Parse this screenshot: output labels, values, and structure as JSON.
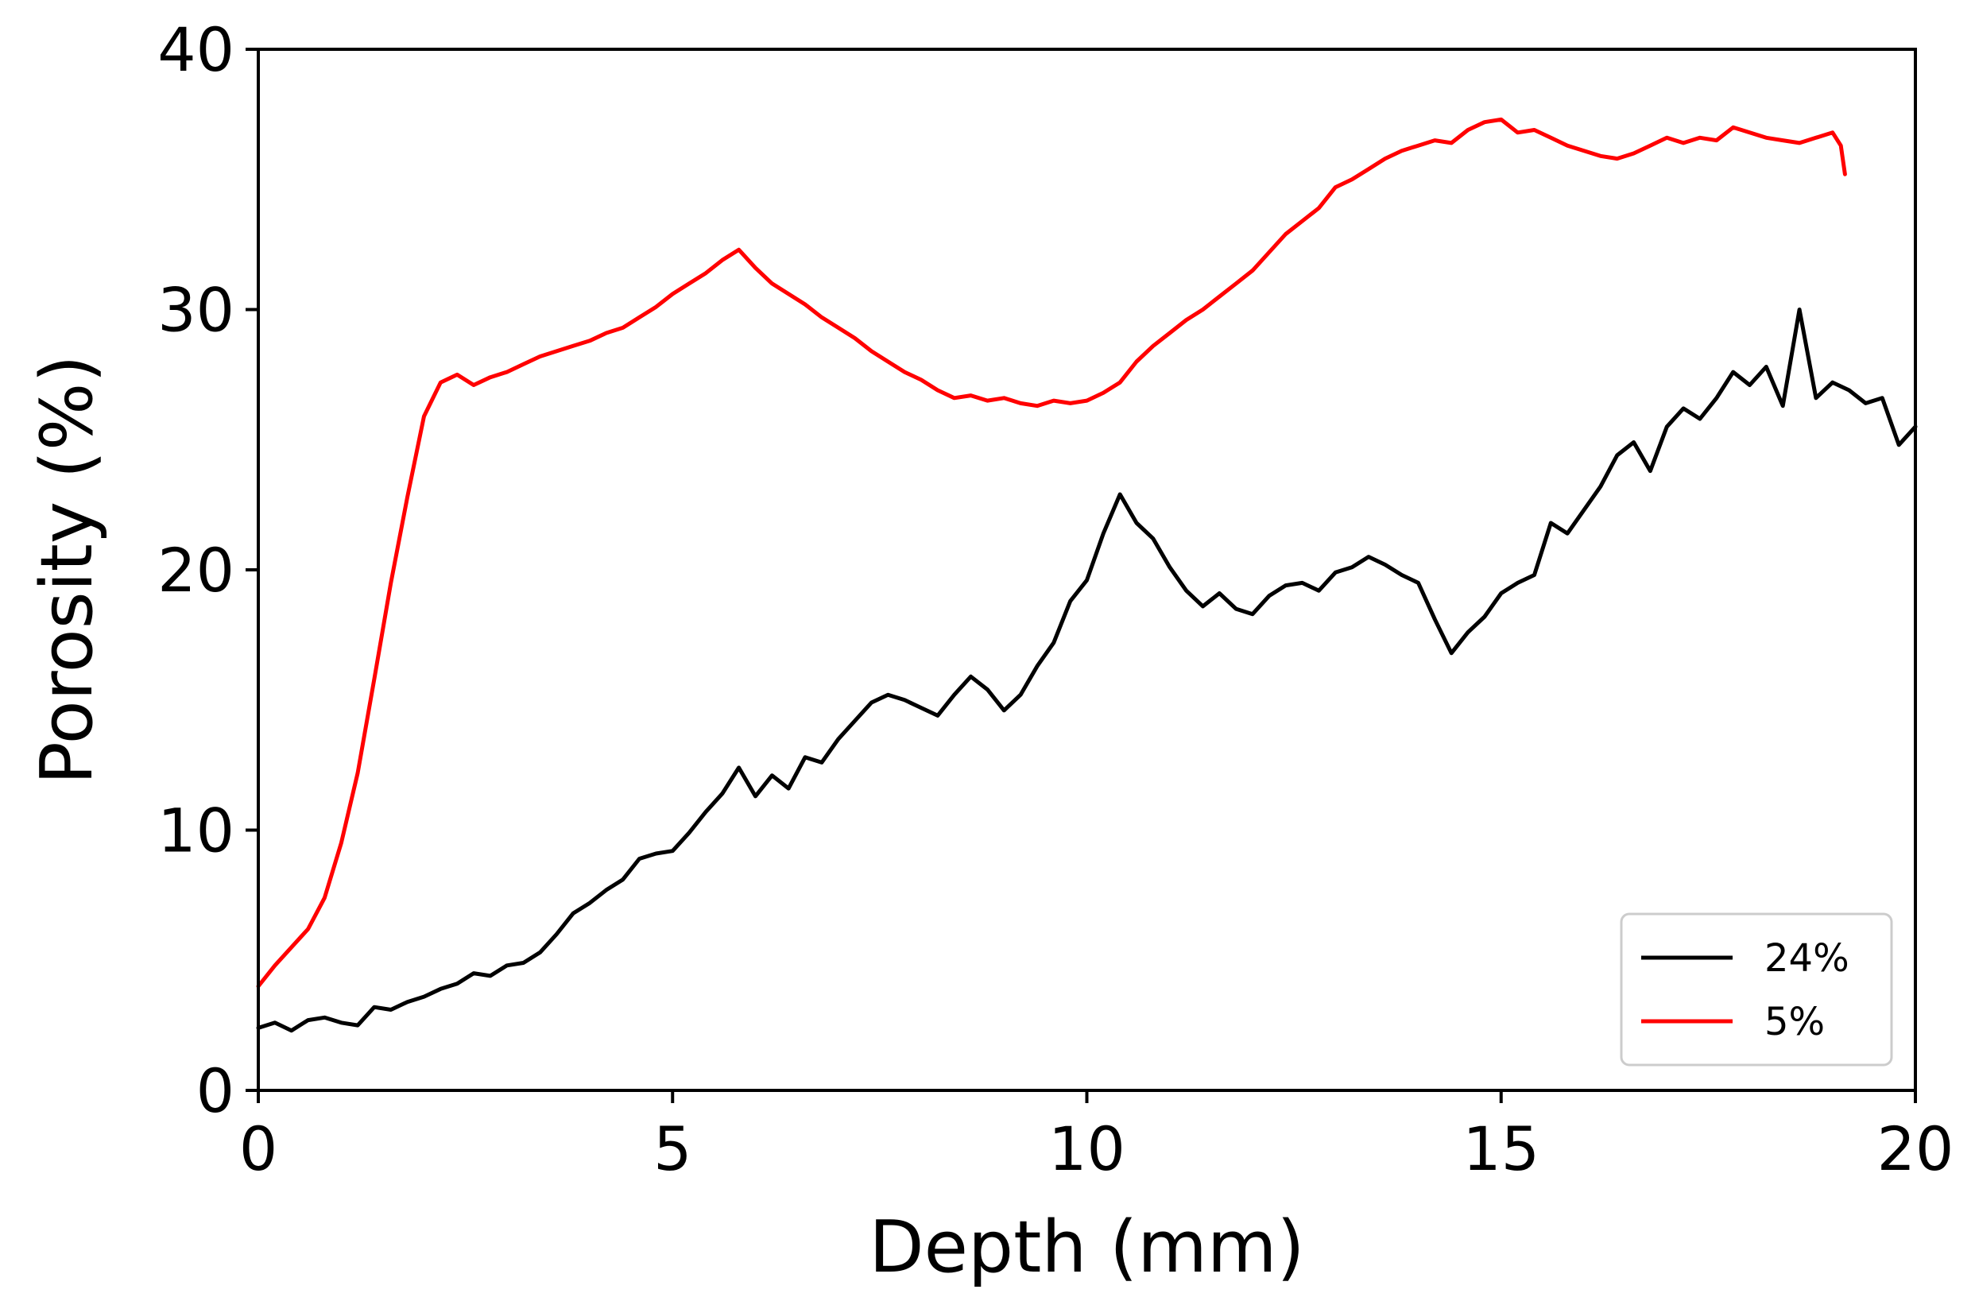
{
  "chart_data": {
    "type": "line",
    "title": "",
    "xlabel": "Depth (mm)",
    "ylabel": "Porosity (%)",
    "xlim": [
      0,
      20
    ],
    "ylim": [
      0,
      40
    ],
    "xticks": [
      0,
      5,
      10,
      15,
      20
    ],
    "yticks": [
      0,
      10,
      20,
      30,
      40
    ],
    "grid": false,
    "legend_position": "bottom-right",
    "series": [
      {
        "name": "24%",
        "color": "#000000",
        "x": [
          0,
          0.2,
          0.4,
          0.6,
          0.8,
          1.0,
          1.2,
          1.4,
          1.6,
          1.8,
          2.0,
          2.2,
          2.4,
          2.6,
          2.8,
          3.0,
          3.2,
          3.4,
          3.6,
          3.8,
          4.0,
          4.2,
          4.4,
          4.6,
          4.8,
          5.0,
          5.2,
          5.4,
          5.6,
          5.8,
          6.0,
          6.2,
          6.4,
          6.6,
          6.8,
          7.0,
          7.2,
          7.4,
          7.6,
          7.8,
          8.0,
          8.2,
          8.4,
          8.6,
          8.8,
          9.0,
          9.2,
          9.4,
          9.6,
          9.8,
          10.0,
          10.2,
          10.4,
          10.6,
          10.8,
          11.0,
          11.2,
          11.4,
          11.6,
          11.8,
          12.0,
          12.2,
          12.4,
          12.6,
          12.8,
          13.0,
          13.2,
          13.4,
          13.6,
          13.8,
          14.0,
          14.2,
          14.4,
          14.6,
          14.8,
          15.0,
          15.2,
          15.4,
          15.6,
          15.8,
          16.0,
          16.2,
          16.4,
          16.6,
          16.8,
          17.0,
          17.2,
          17.4,
          17.6,
          17.8,
          18.0,
          18.2,
          18.4,
          18.6,
          18.8,
          19.0,
          19.2,
          19.4,
          19.6,
          19.8,
          20.0
        ],
        "y": [
          2.4,
          2.6,
          2.3,
          2.7,
          2.8,
          2.6,
          2.5,
          3.2,
          3.1,
          3.4,
          3.6,
          3.9,
          4.1,
          4.5,
          4.4,
          4.8,
          4.9,
          5.3,
          6.0,
          6.8,
          7.2,
          7.7,
          8.1,
          8.9,
          9.1,
          9.2,
          9.9,
          10.7,
          11.4,
          12.4,
          11.3,
          12.1,
          11.6,
          12.8,
          12.6,
          13.5,
          14.2,
          14.9,
          15.2,
          15.0,
          14.7,
          14.4,
          15.2,
          15.9,
          15.4,
          14.6,
          15.2,
          16.3,
          17.2,
          18.8,
          19.6,
          21.4,
          22.9,
          21.8,
          21.2,
          20.1,
          19.2,
          18.6,
          19.1,
          18.5,
          18.3,
          19.0,
          19.4,
          19.5,
          19.2,
          19.9,
          20.1,
          20.5,
          20.2,
          19.8,
          19.5,
          18.1,
          16.8,
          17.6,
          18.2,
          19.1,
          19.5,
          19.8,
          21.8,
          21.4,
          22.3,
          23.2,
          24.4,
          24.9,
          23.8,
          25.5,
          26.2,
          25.8,
          26.6,
          27.6,
          27.1,
          27.8,
          26.3,
          30.0,
          26.6,
          27.2,
          26.9,
          26.4,
          26.6,
          24.8,
          25.5
        ]
      },
      {
        "name": "5%",
        "color": "#ff0000",
        "x": [
          0,
          0.2,
          0.4,
          0.6,
          0.8,
          1.0,
          1.2,
          1.4,
          1.6,
          1.8,
          2.0,
          2.2,
          2.4,
          2.6,
          2.8,
          3.0,
          3.2,
          3.4,
          3.6,
          3.8,
          4.0,
          4.2,
          4.4,
          4.6,
          4.8,
          5.0,
          5.2,
          5.4,
          5.6,
          5.8,
          6.0,
          6.2,
          6.4,
          6.6,
          6.8,
          7.0,
          7.2,
          7.4,
          7.6,
          7.8,
          8.0,
          8.2,
          8.4,
          8.6,
          8.8,
          9.0,
          9.2,
          9.4,
          9.6,
          9.8,
          10.0,
          10.2,
          10.4,
          10.6,
          10.8,
          11.0,
          11.2,
          11.4,
          11.6,
          11.8,
          12.0,
          12.2,
          12.4,
          12.6,
          12.8,
          13.0,
          13.2,
          13.4,
          13.6,
          13.8,
          14.0,
          14.2,
          14.4,
          14.6,
          14.8,
          15.0,
          15.2,
          15.4,
          15.6,
          15.8,
          16.0,
          16.2,
          16.4,
          16.6,
          16.8,
          17.0,
          17.2,
          17.4,
          17.6,
          17.8,
          18.0,
          18.2,
          18.4,
          18.6,
          18.8,
          19.0,
          19.1,
          19.15
        ],
        "y": [
          4.0,
          4.8,
          5.5,
          6.2,
          7.4,
          9.5,
          12.2,
          15.8,
          19.5,
          22.8,
          25.9,
          27.2,
          27.5,
          27.1,
          27.4,
          27.6,
          27.9,
          28.2,
          28.4,
          28.6,
          28.8,
          29.1,
          29.3,
          29.7,
          30.1,
          30.6,
          31.0,
          31.4,
          31.9,
          32.3,
          31.6,
          31.0,
          30.6,
          30.2,
          29.7,
          29.3,
          28.9,
          28.4,
          28.0,
          27.6,
          27.3,
          26.9,
          26.6,
          26.7,
          26.5,
          26.6,
          26.4,
          26.3,
          26.5,
          26.4,
          26.5,
          26.8,
          27.2,
          28.0,
          28.6,
          29.1,
          29.6,
          30.0,
          30.5,
          31.0,
          31.5,
          32.2,
          32.9,
          33.4,
          33.9,
          34.7,
          35.0,
          35.4,
          35.8,
          36.1,
          36.3,
          36.5,
          36.4,
          36.9,
          37.2,
          37.3,
          36.8,
          36.9,
          36.6,
          36.3,
          36.1,
          35.9,
          35.8,
          36.0,
          36.3,
          36.6,
          36.4,
          36.6,
          36.5,
          37.0,
          36.8,
          36.6,
          36.5,
          36.4,
          36.6,
          36.8,
          36.3,
          35.2
        ]
      }
    ]
  }
}
